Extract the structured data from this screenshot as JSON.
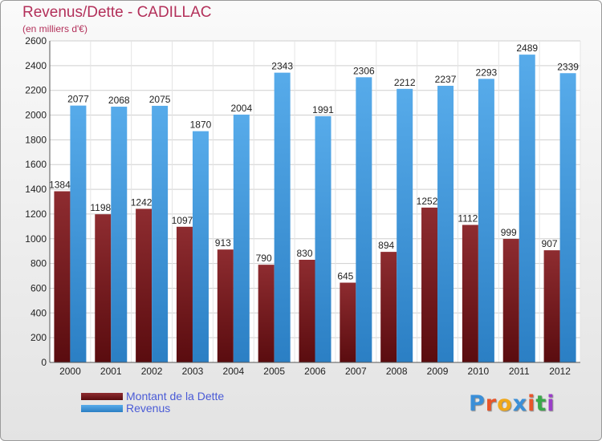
{
  "colors": {
    "dette": "#8e2c30",
    "revenus": "#3d95dc",
    "title": "#b3305a",
    "legend_text": "#4a5bd6"
  },
  "chart_data": {
    "type": "bar",
    "title": "Revenus/Dette - CADILLAC",
    "subtitle": "(en milliers d'€)",
    "xlabel": "",
    "ylabel": "",
    "ylim": [
      0,
      2600
    ],
    "yticks": [
      0,
      200,
      400,
      600,
      800,
      1000,
      1200,
      1400,
      1600,
      1800,
      2000,
      2200,
      2400,
      2600
    ],
    "grid": true,
    "legend_position": "bottom-left",
    "categories": [
      "2000",
      "2001",
      "2002",
      "2003",
      "2004",
      "2005",
      "2006",
      "2007",
      "2008",
      "2009",
      "2010",
      "2011",
      "2012"
    ],
    "series": [
      {
        "name": "Montant de la Dette",
        "values": [
          1384,
          1198,
          1242,
          1097,
          913,
          790,
          830,
          645,
          894,
          1252,
          1112,
          999,
          907
        ],
        "labels": [
          "1384",
          "1198",
          "1242",
          "1097",
          "913",
          "790",
          "830",
          "645",
          "894",
          "1252",
          "1112",
          "999",
          "907"
        ]
      },
      {
        "name": "Revenus",
        "values": [
          2077,
          2068,
          2075,
          1870,
          2004,
          2343,
          1991,
          2306,
          2212,
          2237,
          2293,
          2489,
          2339
        ],
        "labels": [
          "2077",
          "2068",
          "2075",
          "1870",
          "2004",
          "2343",
          "1991",
          "2306",
          "2212",
          "2237",
          "2293",
          "2489",
          "2339"
        ]
      }
    ]
  },
  "legend": {
    "items": [
      "Montant de la Dette",
      "Revenus"
    ]
  },
  "logo": {
    "letters": [
      "P",
      "r",
      "o",
      "x",
      "i",
      "t",
      "i"
    ],
    "colors": [
      "#3a8fd8",
      "#e8552a",
      "#f0a81a",
      "#3a8fd8",
      "#e8552a",
      "#3aa84a",
      "#9a3ec8"
    ]
  }
}
